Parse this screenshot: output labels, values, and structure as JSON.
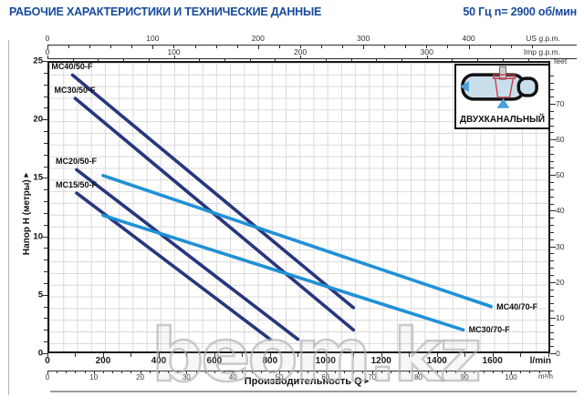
{
  "header": {
    "title": "РАБОЧИЕ ХАРАКТЕРИСТИКИ И ТЕХНИЧЕСКИЕ ДАННЫЕ",
    "frequency": "50 Гц  n= 2900 об/мин"
  },
  "axes": {
    "us_gpm": {
      "unit": "US g.p.m.",
      "majors": [
        0,
        100,
        200,
        300,
        400
      ],
      "minor_step": 20,
      "minor_max": 470
    },
    "imp_gpm": {
      "unit": "Imp g.p.m.",
      "majors": [
        0,
        100,
        200,
        300
      ],
      "minor_step": 20,
      "minor_max": 390
    },
    "lmin": {
      "unit": "l/min",
      "majors": [
        0,
        200,
        400,
        600,
        800,
        1000,
        1200,
        1400,
        1600
      ],
      "minor_step": 100,
      "minor_max": 1800
    },
    "m3h": {
      "unit": "m³/h",
      "majors": [
        0,
        10,
        20,
        30,
        40,
        50,
        60,
        70,
        80,
        90,
        100
      ],
      "minor_step": 2,
      "minor_max": 108
    },
    "head_m": {
      "unit": "Напор H (метры)",
      "majors": [
        0,
        5,
        10,
        15,
        20,
        25
      ],
      "minor_step": 1,
      "minor_max": 25
    },
    "feet": {
      "unit": "feet",
      "majors": [
        0,
        10,
        20,
        30,
        40,
        50,
        60,
        70
      ],
      "minor_step": 2,
      "minor_max": 78
    }
  },
  "xlabel": "Производительность Q",
  "inset": {
    "label": "ДВУХКАНАЛЬНЫЙ"
  },
  "watermark": "beom.kz",
  "icons": {
    "axis_arrow": "▸"
  },
  "colors": {
    "navy": "#28367d",
    "light_blue": "#2191d6",
    "title_blue": "#164a9c"
  },
  "chart_data": {
    "type": "line",
    "title": "РАБОЧИЕ ХАРАКТЕРИСТИКИ И ТЕХНИЧЕСКИЕ ДАННЫЕ",
    "note": "50 Гц n= 2900 об/мин",
    "xlabel": "Производительность Q",
    "ylabel": "Напор H (метры)",
    "x_units": [
      "l/min",
      "m³/h",
      "US g.p.m.",
      "Imp g.p.m."
    ],
    "y_units": [
      "метры",
      "feet"
    ],
    "xlim_lmin": [
      0,
      1800
    ],
    "ylim_m": [
      0,
      25
    ],
    "grid": true,
    "legend_position": "labels-on-curves",
    "series": [
      {
        "name": "MC40/50-F",
        "color": "#28367d",
        "q_lmin": [
          90,
          1100
        ],
        "h_m": [
          23.8,
          3.9
        ],
        "label_anchor": "start"
      },
      {
        "name": "MC30/50-F",
        "color": "#28367d",
        "q_lmin": [
          100,
          1100
        ],
        "h_m": [
          21.8,
          2.0
        ],
        "label_anchor": "start"
      },
      {
        "name": "MC20/50-F",
        "color": "#28367d",
        "q_lmin": [
          105,
          900
        ],
        "h_m": [
          15.7,
          1.2
        ],
        "label_anchor": "start"
      },
      {
        "name": "MC15/50-F",
        "color": "#28367d",
        "q_lmin": [
          105,
          800
        ],
        "h_m": [
          13.7,
          1.2
        ],
        "label_anchor": "start"
      },
      {
        "name": "MC40/70-F",
        "color": "#2191d6",
        "q_lmin": [
          200,
          1595
        ],
        "h_m": [
          15.2,
          4.0
        ],
        "label_anchor": "end"
      },
      {
        "name": "MC30/70-F",
        "color": "#2191d6",
        "q_lmin": [
          200,
          1495
        ],
        "h_m": [
          11.8,
          2.0
        ],
        "label_anchor": "end"
      }
    ]
  }
}
